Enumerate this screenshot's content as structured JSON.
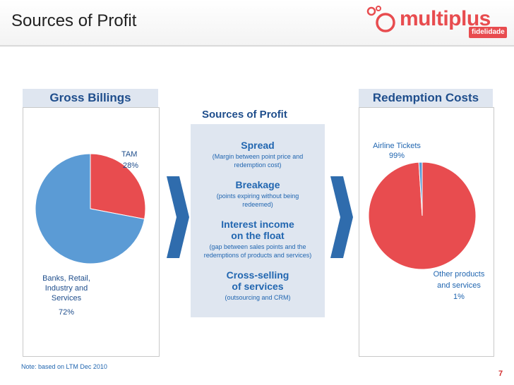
{
  "header": {
    "title": "Sources of Profit"
  },
  "logo": {
    "text": "multiplus",
    "sub": "fidelidade"
  },
  "left_panel": {
    "title": "Gross Billings",
    "labels": {
      "tam": "TAM",
      "tam_pct": "28%",
      "banks": "Banks, Retail,",
      "banks2": "Industry and",
      "banks3": "Services",
      "banks_pct": "72%"
    }
  },
  "center": {
    "title": "Sources of Profit",
    "items": [
      {
        "head": "Spread",
        "head2": "",
        "sub": "(Margin between point price and",
        "sub2": "redemption cost)"
      },
      {
        "head": "Breakage",
        "head2": "",
        "sub": "(points expiring without being",
        "sub2": "redeemed)"
      },
      {
        "head": "Interest income",
        "head2": "on the float",
        "sub": "(gap between sales points and the",
        "sub2": "redemptions of products and services)"
      },
      {
        "head": "Cross-selling",
        "head2": "of services",
        "sub": "(outsourcing and CRM)",
        "sub2": ""
      }
    ]
  },
  "right_panel": {
    "title": "Redemption Costs",
    "labels": {
      "airline": "Airline Tickets",
      "airline_pct": "99%",
      "other": "Other products",
      "other2": "and services",
      "other_pct": "1%"
    }
  },
  "footer": {
    "note": "Note: based on LTM Dec 2010",
    "page": "7"
  },
  "colors": {
    "red": "#e84c4f",
    "blue": "#5b9bd5",
    "navy": "#1f4e8c",
    "arrow": "#2f6cad"
  },
  "chart_data": [
    {
      "type": "pie",
      "title": "Gross Billings",
      "labels": [
        "TAM",
        "Banks, Retail, Industry and Services"
      ],
      "values": [
        28,
        72
      ],
      "colors": [
        "#e84c4f",
        "#5b9bd5"
      ],
      "start_angle_deg": 0
    },
    {
      "type": "pie",
      "title": "Redemption Costs",
      "labels": [
        "Airline Tickets",
        "Other products and services"
      ],
      "values": [
        99,
        1
      ],
      "colors": [
        "#e84c4f",
        "#5b9bd5"
      ],
      "start_angle_deg": 0
    }
  ]
}
